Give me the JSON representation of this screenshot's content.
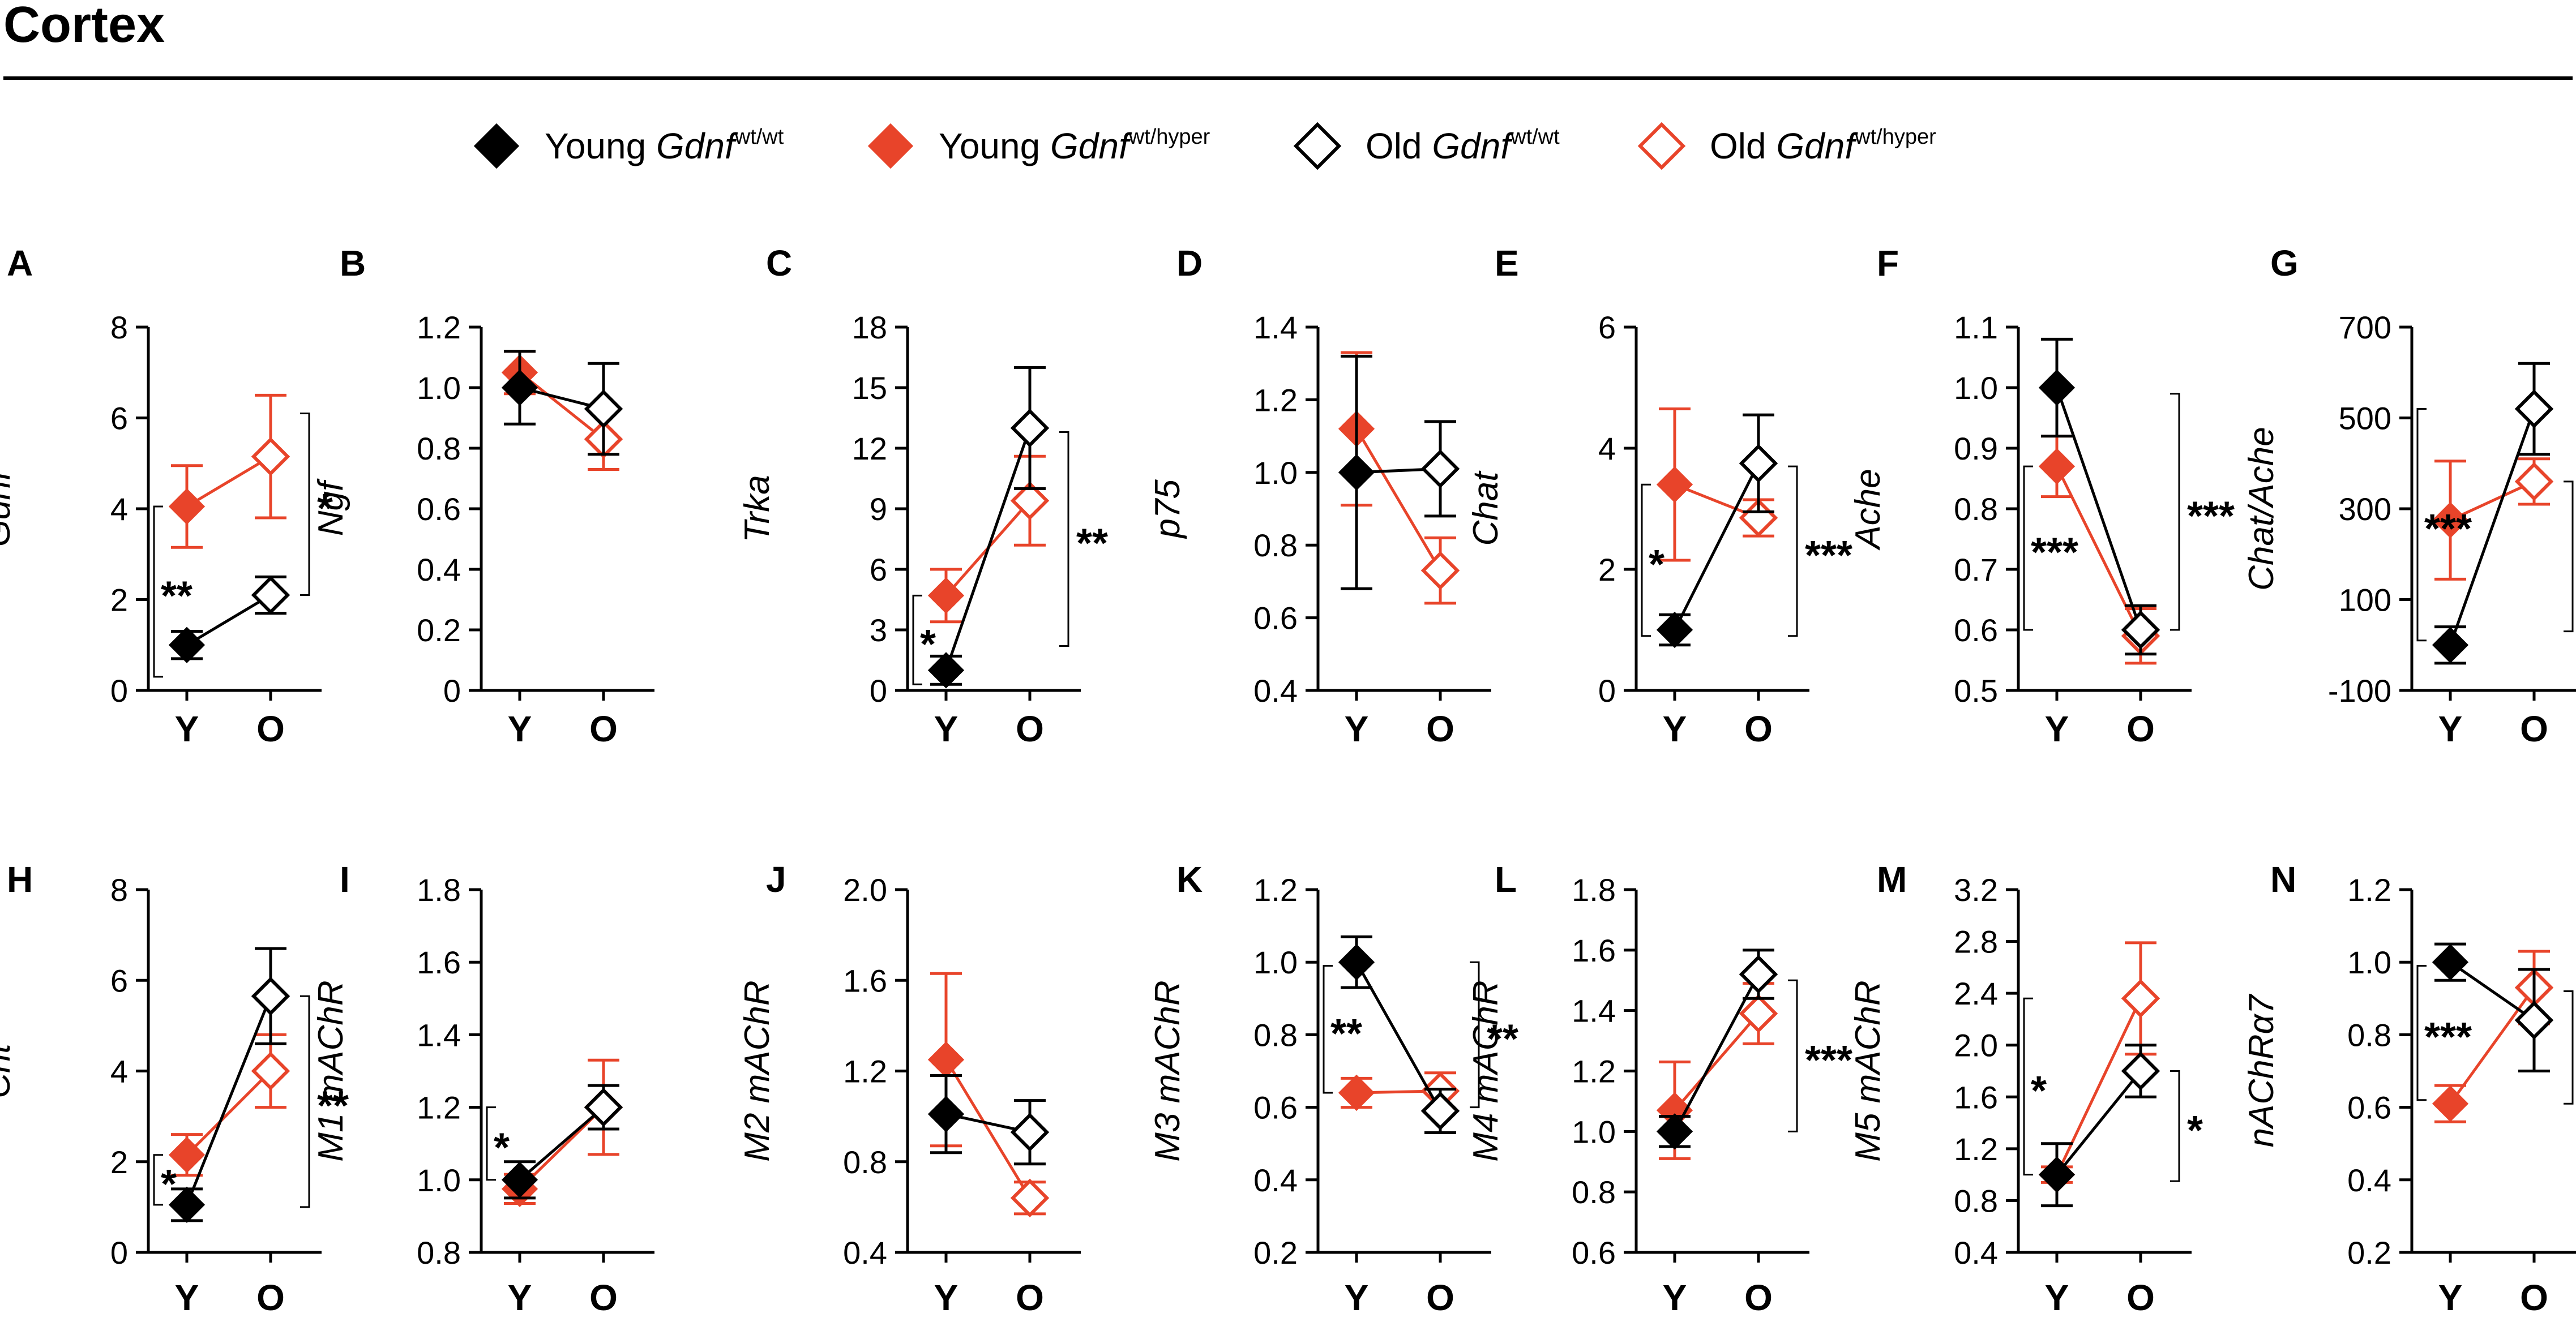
{
  "figure": {
    "title": "Cortex",
    "legend": [
      {
        "label": "Young ",
        "gene": "Gdnf",
        "sup": "wt/wt",
        "fill": "#000000",
        "stroke": "#000000"
      },
      {
        "label": "Young ",
        "gene": "Gdnf",
        "sup": "wt/hyper",
        "fill": "#e8442a",
        "stroke": "#e8442a"
      },
      {
        "label": "Old ",
        "gene": "Gdnf",
        "sup": "wt/wt",
        "fill": "#ffffff",
        "stroke": "#000000"
      },
      {
        "label": "Old ",
        "gene": "Gdnf",
        "sup": "wt/hyper",
        "fill": "#ffffff",
        "stroke": "#e8442a"
      }
    ],
    "colors": {
      "wt": "#000000",
      "hyper": "#e8442a"
    }
  },
  "chart_data": [
    {
      "id": "A",
      "type": "line",
      "letter": "A",
      "ylabel": "Gdnf",
      "ylim": [
        0,
        8
      ],
      "ticks": [
        "0",
        "2",
        "4",
        "6",
        "8"
      ],
      "categories": [
        "Y",
        "O"
      ],
      "series": [
        {
          "name": "wt/wt",
          "values": [
            1.0,
            2.1
          ],
          "errors": [
            0.3,
            0.4
          ]
        },
        {
          "name": "wt/hyper",
          "values": [
            4.05,
            5.15
          ],
          "errors": [
            0.9,
            1.35
          ]
        }
      ],
      "brackets": [
        {
          "side": "left",
          "y1": 0.3,
          "y2": 4.05,
          "stars": "**"
        },
        {
          "side": "right",
          "y1": 2.1,
          "y2": 6.1,
          "stars": "*"
        }
      ]
    },
    {
      "id": "B",
      "type": "line",
      "letter": "B",
      "ylabel": "Ngf",
      "ylim": [
        0,
        1.2
      ],
      "ticks": [
        "0",
        "0.2",
        "0.4",
        "0.6",
        "0.8",
        "1.0",
        "1.2"
      ],
      "categories": [
        "Y",
        "O"
      ],
      "series": [
        {
          "name": "wt/wt",
          "values": [
            1.0,
            0.93
          ],
          "errors": [
            0.12,
            0.15
          ]
        },
        {
          "name": "wt/hyper",
          "values": [
            1.05,
            0.83
          ],
          "errors": [
            0.07,
            0.1
          ]
        }
      ],
      "brackets": []
    },
    {
      "id": "C",
      "type": "line",
      "letter": "C",
      "ylabel": "Trka",
      "ylim": [
        0,
        18
      ],
      "ticks": [
        "0",
        "3",
        "6",
        "9",
        "12",
        "15",
        "18"
      ],
      "categories": [
        "Y",
        "O"
      ],
      "series": [
        {
          "name": "wt/wt",
          "values": [
            1.0,
            13.0
          ],
          "errors": [
            0.7,
            3.0
          ]
        },
        {
          "name": "wt/hyper",
          "values": [
            4.7,
            9.4
          ],
          "errors": [
            1.3,
            2.2
          ]
        }
      ],
      "brackets": [
        {
          "side": "left",
          "y1": 0.3,
          "y2": 4.7,
          "stars": "*"
        },
        {
          "side": "right",
          "y1": 2.2,
          "y2": 12.8,
          "stars": "**"
        }
      ]
    },
    {
      "id": "D",
      "type": "line",
      "letter": "D",
      "ylabel": "p75",
      "ylim": [
        0.4,
        1.4
      ],
      "ticks": [
        "0.4",
        "0.6",
        "0.8",
        "1.0",
        "1.2",
        "1.4"
      ],
      "categories": [
        "Y",
        "O"
      ],
      "series": [
        {
          "name": "wt/wt",
          "values": [
            1.0,
            1.01
          ],
          "errors": [
            0.32,
            0.13
          ]
        },
        {
          "name": "wt/hyper",
          "values": [
            1.12,
            0.73
          ],
          "errors": [
            0.21,
            0.09
          ]
        }
      ],
      "brackets": []
    },
    {
      "id": "E",
      "type": "line",
      "letter": "E",
      "ylabel": "Chat",
      "ylim": [
        0,
        6
      ],
      "ticks": [
        "0",
        "2",
        "4",
        "6"
      ],
      "categories": [
        "Y",
        "O"
      ],
      "series": [
        {
          "name": "wt/wt",
          "values": [
            1.0,
            3.75
          ],
          "errors": [
            0.25,
            0.8
          ]
        },
        {
          "name": "wt/hyper",
          "values": [
            3.4,
            2.85
          ],
          "errors": [
            1.25,
            0.3
          ]
        }
      ],
      "brackets": [
        {
          "side": "left",
          "y1": 0.9,
          "y2": 3.4,
          "stars": "*"
        },
        {
          "side": "right",
          "y1": 0.9,
          "y2": 3.7,
          "stars": "***"
        }
      ]
    },
    {
      "id": "F",
      "type": "line",
      "letter": "F",
      "ylabel": "Ache",
      "ylim": [
        0.5,
        1.1
      ],
      "ticks": [
        "0.5",
        "0.6",
        "0.7",
        "0.8",
        "0.9",
        "1.0",
        "1.1"
      ],
      "categories": [
        "Y",
        "O"
      ],
      "series": [
        {
          "name": "wt/wt",
          "values": [
            1.0,
            0.6
          ],
          "errors": [
            0.08,
            0.04
          ]
        },
        {
          "name": "wt/hyper",
          "values": [
            0.87,
            0.59
          ],
          "errors": [
            0.05,
            0.045
          ]
        }
      ],
      "brackets": [
        {
          "side": "left",
          "y1": 0.6,
          "y2": 0.87,
          "stars": "***"
        },
        {
          "side": "right",
          "y1": 0.6,
          "y2": 0.99,
          "stars": "***"
        }
      ]
    },
    {
      "id": "G",
      "type": "line",
      "letter": "G",
      "ylabel": "Chat/Ache",
      "ylim": [
        -100,
        700
      ],
      "ticks": [
        "-100",
        "100",
        "300",
        "500",
        "700"
      ],
      "categories": [
        "Y",
        "O"
      ],
      "series": [
        {
          "name": "wt/wt",
          "values": [
            0,
            520
          ],
          "errors": [
            40,
            100
          ]
        },
        {
          "name": "wt/hyper",
          "values": [
            275,
            360
          ],
          "errors": [
            130,
            50
          ]
        }
      ],
      "brackets": [
        {
          "side": "left",
          "y1": 10,
          "y2": 520,
          "stars": "***"
        },
        {
          "side": "right",
          "y1": 30,
          "y2": 360,
          "stars": "*"
        }
      ]
    },
    {
      "id": "H",
      "type": "line",
      "letter": "H",
      "ylabel": "Cht",
      "ylim": [
        0,
        8
      ],
      "ticks": [
        "0",
        "2",
        "4",
        "6",
        "8"
      ],
      "categories": [
        "Y",
        "O"
      ],
      "series": [
        {
          "name": "wt/wt",
          "values": [
            1.05,
            5.65
          ],
          "errors": [
            0.35,
            1.05
          ]
        },
        {
          "name": "wt/hyper",
          "values": [
            2.15,
            4.0
          ],
          "errors": [
            0.45,
            0.8
          ]
        }
      ],
      "brackets": [
        {
          "side": "left",
          "y1": 1.05,
          "y2": 2.15,
          "stars": "*"
        },
        {
          "side": "right",
          "y1": 1.0,
          "y2": 5.65,
          "stars": "**"
        }
      ]
    },
    {
      "id": "I",
      "type": "line",
      "letter": "I",
      "ylabel": "M1 mAChR",
      "ylim": [
        0.8,
        1.8
      ],
      "ticks": [
        "0.8",
        "1.0",
        "1.2",
        "1.4",
        "1.6",
        "1.8"
      ],
      "categories": [
        "Y",
        "O"
      ],
      "series": [
        {
          "name": "wt/wt",
          "values": [
            1.0,
            1.2
          ],
          "errors": [
            0.05,
            0.06
          ]
        },
        {
          "name": "wt/hyper",
          "values": [
            0.975,
            1.2
          ],
          "errors": [
            0.04,
            0.13
          ]
        }
      ],
      "brackets": [
        {
          "side": "left",
          "y1": 1.0,
          "y2": 1.2,
          "stars": "*"
        }
      ]
    },
    {
      "id": "J",
      "type": "line",
      "letter": "J",
      "ylabel": "M2 mAChR",
      "ylim": [
        0.4,
        2.0
      ],
      "ticks": [
        "0.4",
        "0.8",
        "1.2",
        "1.6",
        "2.0"
      ],
      "categories": [
        "Y",
        "O"
      ],
      "series": [
        {
          "name": "wt/wt",
          "values": [
            1.01,
            0.93
          ],
          "errors": [
            0.17,
            0.14
          ]
        },
        {
          "name": "wt/hyper",
          "values": [
            1.25,
            0.64
          ],
          "errors": [
            0.38,
            0.07
          ]
        }
      ],
      "brackets": []
    },
    {
      "id": "K",
      "type": "line",
      "letter": "K",
      "ylabel": "M3 mAChR",
      "ylim": [
        0.2,
        1.2
      ],
      "ticks": [
        "0.2",
        "0.4",
        "0.6",
        "0.8",
        "1.0",
        "1.2"
      ],
      "categories": [
        "Y",
        "O"
      ],
      "series": [
        {
          "name": "wt/wt",
          "values": [
            1.0,
            0.59
          ],
          "errors": [
            0.07,
            0.06
          ]
        },
        {
          "name": "wt/hyper",
          "values": [
            0.64,
            0.645
          ],
          "errors": [
            0.04,
            0.05
          ]
        }
      ],
      "brackets": [
        {
          "side": "left",
          "y1": 0.64,
          "y2": 0.99,
          "stars": "**"
        },
        {
          "side": "right",
          "y1": 0.6,
          "y2": 1.0,
          "stars": "**"
        }
      ]
    },
    {
      "id": "L",
      "type": "line",
      "letter": "L",
      "ylabel": "M4 mAChR",
      "ylim": [
        0.6,
        1.8
      ],
      "ticks": [
        "0.6",
        "0.8",
        "1.0",
        "1.2",
        "1.4",
        "1.6",
        "1.8"
      ],
      "categories": [
        "Y",
        "O"
      ],
      "series": [
        {
          "name": "wt/wt",
          "values": [
            1.0,
            1.52
          ],
          "errors": [
            0.05,
            0.08
          ]
        },
        {
          "name": "wt/hyper",
          "values": [
            1.07,
            1.39
          ],
          "errors": [
            0.16,
            0.1
          ]
        }
      ],
      "brackets": [
        {
          "side": "right",
          "y1": 1.0,
          "y2": 1.5,
          "stars": "***"
        }
      ]
    },
    {
      "id": "M",
      "type": "line",
      "letter": "M",
      "ylabel": "M5 mAChR",
      "ylim": [
        0.4,
        3.2
      ],
      "ticks": [
        "0.4",
        "0.8",
        "1.2",
        "1.6",
        "2.0",
        "2.4",
        "2.8",
        "3.2"
      ],
      "categories": [
        "Y",
        "O"
      ],
      "series": [
        {
          "name": "wt/wt",
          "values": [
            1.0,
            1.8
          ],
          "errors": [
            0.24,
            0.2
          ]
        },
        {
          "name": "wt/hyper",
          "values": [
            1.0,
            2.36
          ],
          "errors": [
            0.06,
            0.43
          ]
        }
      ],
      "brackets": [
        {
          "side": "left",
          "y1": 1.0,
          "y2": 2.36,
          "stars": "*"
        },
        {
          "side": "right",
          "y1": 0.95,
          "y2": 1.8,
          "stars": "*"
        }
      ]
    },
    {
      "id": "N",
      "type": "line",
      "letter": "N",
      "ylabel": "nAChRα7",
      "ylim": [
        0.2,
        1.2
      ],
      "ticks": [
        "0.2",
        "0.4",
        "0.6",
        "0.8",
        "1.0",
        "1.2"
      ],
      "categories": [
        "Y",
        "O"
      ],
      "series": [
        {
          "name": "wt/wt",
          "values": [
            1.0,
            0.84
          ],
          "errors": [
            0.05,
            0.14
          ]
        },
        {
          "name": "wt/hyper",
          "values": [
            0.61,
            0.93
          ],
          "errors": [
            0.05,
            0.1
          ]
        }
      ],
      "brackets": [
        {
          "side": "left",
          "y1": 0.62,
          "y2": 0.99,
          "stars": "***"
        },
        {
          "side": "right",
          "y1": 0.61,
          "y2": 0.92,
          "stars": "*"
        }
      ]
    }
  ]
}
